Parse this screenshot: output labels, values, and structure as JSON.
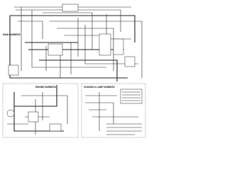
{
  "labels": {
    "main": "MAIN HARNESS",
    "engine": "ENGINE HARNESS",
    "chassis": "CHASSIS & LAMP HARNESS"
  }
}
